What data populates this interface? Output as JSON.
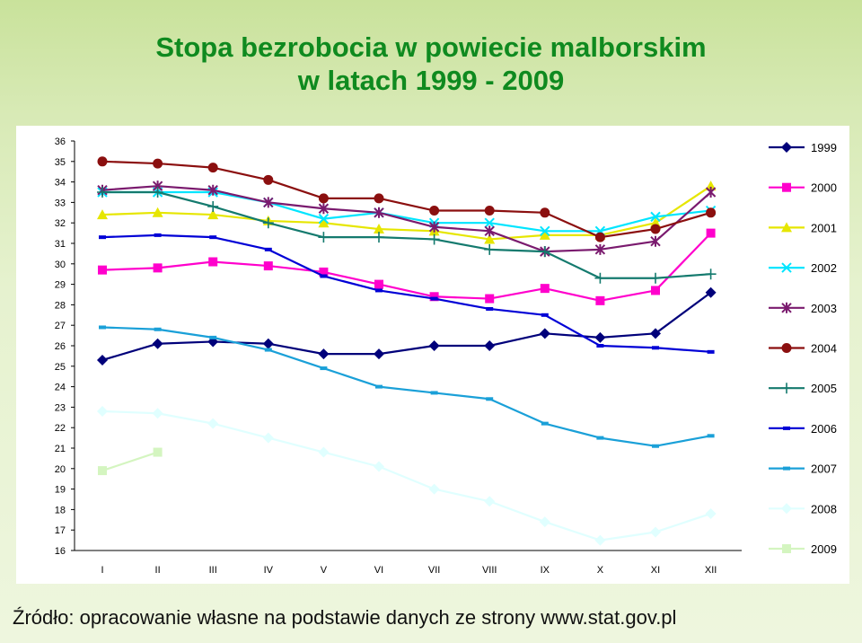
{
  "title": {
    "line1": "Stopa bezrobocia w powiecie malborskim",
    "line2": "w latach 1999 - 2009"
  },
  "source": "Źródło: opracowanie własne na podstawie danych ze strony www.stat.gov.pl",
  "chart_data": {
    "type": "line",
    "title": "Stopa bezrobocia w powiecie malborskim w latach 1999 - 2009",
    "xlabel": "",
    "ylabel": "",
    "ylim": [
      16,
      36
    ],
    "yticks": [
      16,
      17,
      18,
      19,
      20,
      21,
      22,
      23,
      24,
      25,
      26,
      27,
      28,
      29,
      30,
      31,
      32,
      33,
      34,
      35,
      36
    ],
    "grid": false,
    "legend": "right",
    "categories": [
      "I",
      "II",
      "III",
      "IV",
      "V",
      "VI",
      "VII",
      "VIII",
      "IX",
      "X",
      "XI",
      "XII"
    ],
    "series": [
      {
        "name": "1999",
        "color": "#00007a",
        "marker": "diamond",
        "values": [
          25.3,
          26.1,
          26.2,
          26.1,
          25.6,
          25.6,
          26.0,
          26.0,
          26.6,
          26.4,
          26.6,
          28.6
        ]
      },
      {
        "name": "2000",
        "color": "#ff00cc",
        "marker": "square",
        "values": [
          29.7,
          29.8,
          30.1,
          29.9,
          29.6,
          29.0,
          28.4,
          28.3,
          28.8,
          28.2,
          28.7,
          31.5
        ]
      },
      {
        "name": "2001",
        "color": "#e6e600",
        "marker": "triangle",
        "values": [
          32.4,
          32.5,
          32.4,
          32.1,
          32.0,
          31.7,
          31.6,
          31.2,
          31.4,
          31.4,
          32.0,
          33.8
        ]
      },
      {
        "name": "2002",
        "color": "#00e5ff",
        "marker": "x",
        "values": [
          33.5,
          33.5,
          33.5,
          33.0,
          32.2,
          32.5,
          32.0,
          32.0,
          31.6,
          31.6,
          32.3,
          32.6
        ]
      },
      {
        "name": "2003",
        "color": "#7a1a6e",
        "marker": "star",
        "values": [
          33.6,
          33.8,
          33.6,
          33.0,
          32.7,
          32.5,
          31.8,
          31.6,
          30.6,
          30.7,
          31.1,
          33.5
        ]
      },
      {
        "name": "2004",
        "color": "#8b0f0f",
        "marker": "circle",
        "values": [
          35.0,
          34.9,
          34.7,
          34.1,
          33.2,
          33.2,
          32.6,
          32.6,
          32.5,
          31.3,
          31.7,
          32.5
        ]
      },
      {
        "name": "2005",
        "color": "#147a6e",
        "marker": "plus",
        "values": [
          33.5,
          33.5,
          32.8,
          32.0,
          31.3,
          31.3,
          31.2,
          30.7,
          30.6,
          29.3,
          29.3,
          29.5
        ]
      },
      {
        "name": "2006",
        "color": "#0000d6",
        "marker": "dash",
        "values": [
          31.3,
          31.4,
          31.3,
          30.7,
          29.4,
          28.7,
          28.3,
          27.8,
          27.5,
          26.0,
          25.9,
          25.7
        ]
      },
      {
        "name": "2007",
        "color": "#1aa0d8",
        "marker": "dash",
        "values": [
          26.9,
          26.8,
          26.4,
          25.8,
          24.9,
          24.0,
          23.7,
          23.4,
          22.2,
          21.5,
          21.1,
          21.6
        ]
      },
      {
        "name": "2008",
        "color": "#e0ffff",
        "marker": "diamond",
        "values": [
          22.8,
          22.7,
          22.2,
          21.5,
          20.8,
          20.1,
          19.0,
          18.4,
          17.4,
          16.5,
          16.9,
          17.8
        ]
      },
      {
        "name": "2009",
        "color": "#d4f5c0",
        "marker": "square",
        "values": [
          19.9,
          20.8,
          null,
          null,
          null,
          null,
          null,
          null,
          null,
          null,
          null,
          null
        ]
      }
    ]
  }
}
